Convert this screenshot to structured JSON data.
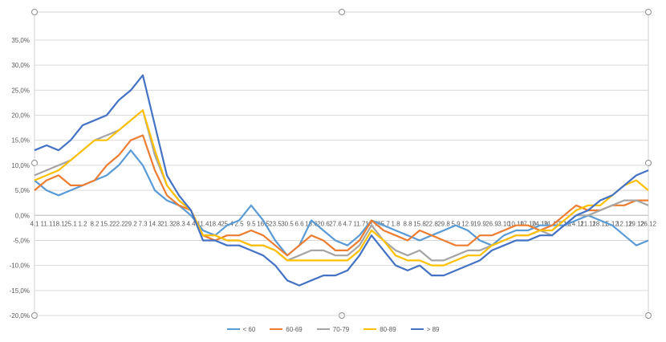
{
  "chart_data": {
    "type": "line",
    "title": "",
    "xlabel": "",
    "ylabel": "",
    "ylim": [
      -0.2,
      0.35
    ],
    "y_ticks": [
      "35,0%",
      "30,0%",
      "25,0%",
      "20,0%",
      "15,0%",
      "10,0%",
      "5,0%",
      "0,0%",
      "-5,0%",
      "-10,0%",
      "-15,0%",
      "-20,0%"
    ],
    "x_tick_labels": [
      "4.1",
      "11.1",
      "18.1",
      "25.1",
      "1.2",
      "8.2",
      "15.2",
      "22.2",
      "29.2",
      "7.3",
      "14.3",
      "21.3",
      "28.3",
      "4.4",
      "11.4",
      "18.4",
      "25.4",
      "2.5",
      "9.5",
      "16.5",
      "23.5",
      "30.5",
      "6.6",
      "13.6",
      "20.6",
      "27.6",
      "4.7",
      "11.7",
      "18.7",
      "25.7",
      "1.8",
      "8.8",
      "15.8",
      "22.8",
      "29.8",
      "5.9",
      "12.9",
      "19.9",
      "26.9",
      "3.10",
      "10.10",
      "17.10",
      "24.10",
      "31.10",
      "7.11",
      "14.11",
      "21.11",
      "28.11",
      "5.12",
      "12.12",
      "19.12",
      "26.12"
    ],
    "gridlines": true,
    "legend_position": "bottom",
    "series": [
      {
        "name": "< 60",
        "color": "#5B9BD5",
        "values": [
          0.07,
          0.05,
          0.04,
          0.05,
          0.06,
          0.07,
          0.08,
          0.1,
          0.13,
          0.1,
          0.05,
          0.03,
          0.02,
          0.0,
          -0.03,
          -0.04,
          -0.02,
          -0.01,
          0.02,
          -0.01,
          -0.05,
          -0.08,
          -0.06,
          -0.01,
          -0.03,
          -0.05,
          -0.06,
          -0.04,
          -0.01,
          -0.02,
          -0.03,
          -0.04,
          -0.05,
          -0.04,
          -0.03,
          -0.02,
          -0.03,
          -0.05,
          -0.06,
          -0.04,
          -0.03,
          -0.03,
          -0.02,
          -0.02,
          -0.02,
          -0.01,
          0.0,
          -0.01,
          -0.02,
          -0.04,
          -0.06,
          -0.05
        ]
      },
      {
        "name": "60-69",
        "color": "#ED7D31",
        "values": [
          0.05,
          0.07,
          0.08,
          0.06,
          0.06,
          0.07,
          0.1,
          0.12,
          0.15,
          0.16,
          0.09,
          0.04,
          0.02,
          0.01,
          -0.04,
          -0.05,
          -0.04,
          -0.04,
          -0.03,
          -0.04,
          -0.06,
          -0.08,
          -0.06,
          -0.04,
          -0.05,
          -0.07,
          -0.07,
          -0.05,
          -0.01,
          -0.03,
          -0.04,
          -0.05,
          -0.03,
          -0.04,
          -0.05,
          -0.06,
          -0.06,
          -0.04,
          -0.04,
          -0.03,
          -0.02,
          -0.02,
          -0.03,
          -0.02,
          0.0,
          0.02,
          0.01,
          0.01,
          0.02,
          0.02,
          0.03,
          0.03
        ]
      },
      {
        "name": "70-79",
        "color": "#A5A5A5",
        "values": [
          0.08,
          0.09,
          0.1,
          0.11,
          0.13,
          0.15,
          0.16,
          0.17,
          0.19,
          0.21,
          0.12,
          0.06,
          0.03,
          0.01,
          -0.04,
          -0.04,
          -0.05,
          -0.05,
          -0.06,
          -0.06,
          -0.07,
          -0.09,
          -0.08,
          -0.07,
          -0.07,
          -0.08,
          -0.08,
          -0.06,
          -0.02,
          -0.05,
          -0.07,
          -0.08,
          -0.07,
          -0.09,
          -0.09,
          -0.08,
          -0.07,
          -0.07,
          -0.06,
          -0.05,
          -0.04,
          -0.04,
          -0.03,
          -0.04,
          -0.02,
          0.0,
          0.0,
          0.01,
          0.02,
          0.03,
          0.03,
          0.02
        ]
      },
      {
        "name": "80-89",
        "color": "#FFC000",
        "values": [
          0.07,
          0.08,
          0.09,
          0.11,
          0.13,
          0.15,
          0.15,
          0.17,
          0.19,
          0.21,
          0.13,
          0.06,
          0.03,
          0.01,
          -0.04,
          -0.04,
          -0.05,
          -0.05,
          -0.06,
          -0.06,
          -0.07,
          -0.09,
          -0.09,
          -0.09,
          -0.09,
          -0.09,
          -0.09,
          -0.07,
          -0.03,
          -0.05,
          -0.08,
          -0.09,
          -0.09,
          -0.1,
          -0.1,
          -0.09,
          -0.08,
          -0.08,
          -0.06,
          -0.05,
          -0.04,
          -0.04,
          -0.03,
          -0.03,
          -0.01,
          0.01,
          0.02,
          0.02,
          0.04,
          0.06,
          0.07,
          0.05
        ]
      },
      {
        "name": "> 89",
        "color": "#4472C4",
        "values": [
          0.13,
          0.14,
          0.13,
          0.15,
          0.18,
          0.19,
          0.2,
          0.23,
          0.25,
          0.28,
          0.18,
          0.08,
          0.04,
          0.01,
          -0.05,
          -0.05,
          -0.06,
          -0.06,
          -0.07,
          -0.08,
          -0.1,
          -0.13,
          -0.14,
          -0.13,
          -0.12,
          -0.12,
          -0.11,
          -0.08,
          -0.04,
          -0.07,
          -0.1,
          -0.11,
          -0.1,
          -0.12,
          -0.12,
          -0.11,
          -0.1,
          -0.09,
          -0.07,
          -0.06,
          -0.05,
          -0.05,
          -0.04,
          -0.04,
          -0.02,
          0.0,
          0.01,
          0.03,
          0.04,
          0.06,
          0.08,
          0.09
        ]
      }
    ]
  }
}
